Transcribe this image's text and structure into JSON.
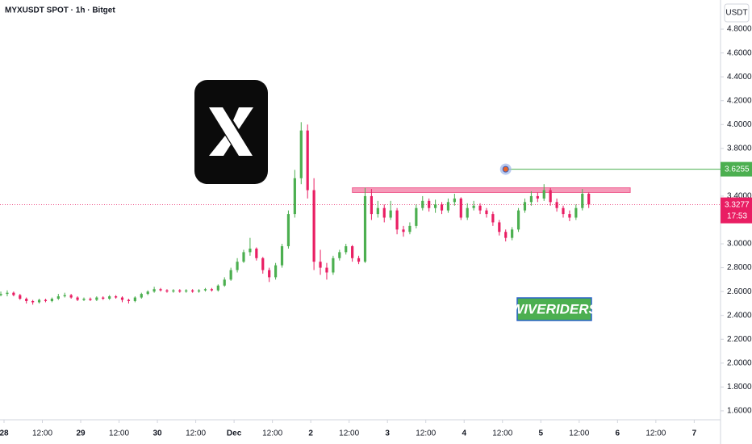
{
  "chart_data": {
    "type": "candlestick",
    "title": "MYXUSDT SPOT · 1h · Bitget",
    "currency": "USDT",
    "up_color": "#4caf50",
    "down_color": "#e91e63",
    "x": [
      -1,
      1,
      3,
      5,
      7,
      9,
      11,
      13,
      15,
      17,
      19,
      21,
      23,
      25,
      27,
      29,
      31,
      33,
      35,
      37,
      39,
      41,
      43,
      45,
      47,
      49,
      51,
      53,
      55,
      57,
      59,
      61,
      63,
      65,
      67,
      69,
      71,
      73,
      75,
      77,
      79,
      81,
      83,
      85,
      87,
      89,
      91,
      93,
      95,
      97,
      99,
      101,
      103,
      105,
      107,
      109,
      111,
      113,
      115,
      117,
      119,
      121,
      123,
      125,
      127,
      129,
      131,
      133,
      135,
      137,
      139,
      141,
      143,
      145,
      147,
      149,
      151,
      153,
      155,
      157,
      159,
      161,
      163,
      165,
      167,
      169,
      171,
      173,
      175,
      177,
      179,
      181,
      183
    ],
    "ohlc": [
      [
        2.57,
        2.6,
        2.56,
        2.58
      ],
      [
        2.58,
        2.61,
        2.56,
        2.59
      ],
      [
        2.59,
        2.6,
        2.56,
        2.57
      ],
      [
        2.57,
        2.58,
        2.53,
        2.54
      ],
      [
        2.54,
        2.55,
        2.5,
        2.52
      ],
      [
        2.52,
        2.53,
        2.49,
        2.51
      ],
      [
        2.51,
        2.54,
        2.5,
        2.53
      ],
      [
        2.53,
        2.54,
        2.51,
        2.52
      ],
      [
        2.52,
        2.55,
        2.51,
        2.54
      ],
      [
        2.54,
        2.58,
        2.53,
        2.56
      ],
      [
        2.56,
        2.59,
        2.55,
        2.57
      ],
      [
        2.57,
        2.58,
        2.54,
        2.55
      ],
      [
        2.55,
        2.56,
        2.52,
        2.53
      ],
      [
        2.53,
        2.55,
        2.52,
        2.54
      ],
      [
        2.54,
        2.55,
        2.52,
        2.53
      ],
      [
        2.53,
        2.56,
        2.52,
        2.55
      ],
      [
        2.55,
        2.56,
        2.53,
        2.54
      ],
      [
        2.54,
        2.57,
        2.53,
        2.56
      ],
      [
        2.56,
        2.57,
        2.54,
        2.55
      ],
      [
        2.55,
        2.56,
        2.51,
        2.53
      ],
      [
        2.53,
        2.54,
        2.5,
        2.52
      ],
      [
        2.52,
        2.56,
        2.51,
        2.55
      ],
      [
        2.55,
        2.59,
        2.54,
        2.58
      ],
      [
        2.58,
        2.61,
        2.57,
        2.6
      ],
      [
        2.6,
        2.64,
        2.59,
        2.62
      ],
      [
        2.62,
        2.63,
        2.6,
        2.61
      ],
      [
        2.61,
        2.62,
        2.59,
        2.6
      ],
      [
        2.6,
        2.62,
        2.59,
        2.61
      ],
      [
        2.61,
        2.62,
        2.59,
        2.6
      ],
      [
        2.6,
        2.62,
        2.59,
        2.61
      ],
      [
        2.61,
        2.62,
        2.59,
        2.6
      ],
      [
        2.6,
        2.62,
        2.59,
        2.61
      ],
      [
        2.61,
        2.63,
        2.6,
        2.62
      ],
      [
        2.62,
        2.63,
        2.6,
        2.61
      ],
      [
        2.61,
        2.66,
        2.6,
        2.65
      ],
      [
        2.65,
        2.72,
        2.64,
        2.7
      ],
      [
        2.7,
        2.8,
        2.69,
        2.78
      ],
      [
        2.78,
        2.88,
        2.76,
        2.85
      ],
      [
        2.85,
        2.95,
        2.84,
        2.93
      ],
      [
        2.93,
        3.05,
        2.9,
        2.96
      ],
      [
        2.96,
        2.97,
        2.86,
        2.88
      ],
      [
        2.88,
        2.89,
        2.75,
        2.78
      ],
      [
        2.78,
        2.8,
        2.68,
        2.72
      ],
      [
        2.72,
        2.84,
        2.7,
        2.82
      ],
      [
        2.82,
        3.0,
        2.8,
        2.98
      ],
      [
        2.98,
        3.28,
        2.96,
        3.25
      ],
      [
        3.25,
        3.62,
        3.22,
        3.55
      ],
      [
        3.55,
        4.02,
        3.5,
        3.95
      ],
      [
        3.95,
        4.0,
        3.38,
        3.45
      ],
      [
        3.45,
        3.55,
        2.78,
        2.85
      ],
      [
        2.85,
        2.95,
        2.74,
        2.8
      ],
      [
        2.8,
        2.84,
        2.7,
        2.76
      ],
      [
        2.76,
        2.9,
        2.74,
        2.88
      ],
      [
        2.88,
        2.95,
        2.86,
        2.93
      ],
      [
        2.93,
        3.0,
        2.91,
        2.98
      ],
      [
        2.98,
        2.99,
        2.85,
        2.88
      ],
      [
        2.88,
        2.9,
        2.83,
        2.85
      ],
      [
        2.85,
        3.47,
        2.84,
        3.4
      ],
      [
        3.4,
        3.46,
        3.2,
        3.25
      ],
      [
        3.25,
        3.36,
        3.22,
        3.3
      ],
      [
        3.3,
        3.33,
        3.18,
        3.22
      ],
      [
        3.22,
        3.36,
        3.2,
        3.28
      ],
      [
        3.28,
        3.3,
        3.08,
        3.12
      ],
      [
        3.12,
        3.15,
        3.06,
        3.1
      ],
      [
        3.1,
        3.18,
        3.08,
        3.15
      ],
      [
        3.15,
        3.33,
        3.13,
        3.3
      ],
      [
        3.3,
        3.4,
        3.28,
        3.36
      ],
      [
        3.36,
        3.38,
        3.27,
        3.3
      ],
      [
        3.3,
        3.37,
        3.26,
        3.33
      ],
      [
        3.33,
        3.35,
        3.25,
        3.28
      ],
      [
        3.28,
        3.38,
        3.26,
        3.35
      ],
      [
        3.35,
        3.42,
        3.32,
        3.38
      ],
      [
        3.38,
        3.39,
        3.2,
        3.22
      ],
      [
        3.22,
        3.34,
        3.2,
        3.3
      ],
      [
        3.3,
        3.36,
        3.28,
        3.32
      ],
      [
        3.32,
        3.34,
        3.25,
        3.28
      ],
      [
        3.28,
        3.3,
        3.22,
        3.25
      ],
      [
        3.25,
        3.27,
        3.15,
        3.18
      ],
      [
        3.18,
        3.2,
        3.07,
        3.1
      ],
      [
        3.1,
        3.12,
        3.02,
        3.05
      ],
      [
        3.05,
        3.14,
        3.03,
        3.12
      ],
      [
        3.12,
        3.3,
        3.1,
        3.28
      ],
      [
        3.28,
        3.38,
        3.26,
        3.35
      ],
      [
        3.35,
        3.44,
        3.32,
        3.4
      ],
      [
        3.4,
        3.43,
        3.35,
        3.38
      ],
      [
        3.38,
        3.5,
        3.36,
        3.45
      ],
      [
        3.45,
        3.47,
        3.32,
        3.35
      ],
      [
        3.35,
        3.38,
        3.27,
        3.3
      ],
      [
        3.3,
        3.32,
        3.22,
        3.25
      ],
      [
        3.25,
        3.28,
        3.19,
        3.22
      ],
      [
        3.22,
        3.33,
        3.2,
        3.3
      ],
      [
        3.3,
        3.46,
        3.28,
        3.42
      ],
      [
        3.42,
        3.43,
        3.3,
        3.33
      ]
    ],
    "xlim": [
      -1.26,
      224.24
    ],
    "xticks": [
      {
        "value": 0,
        "label": "28"
      },
      {
        "value": 12,
        "label": "12:00"
      },
      {
        "value": 24,
        "label": "29"
      },
      {
        "value": 36,
        "label": "12:00"
      },
      {
        "value": 48,
        "label": "30"
      },
      {
        "value": 60,
        "label": "12:00"
      },
      {
        "value": 72,
        "label": "Dec"
      },
      {
        "value": 84,
        "label": "12:00"
      },
      {
        "value": 96,
        "label": "2"
      },
      {
        "value": 108,
        "label": "12:00"
      },
      {
        "value": 120,
        "label": "3"
      },
      {
        "value": 132,
        "label": "12:00"
      },
      {
        "value": 144,
        "label": "4"
      },
      {
        "value": 156,
        "label": "12:00"
      },
      {
        "value": 168,
        "label": "5"
      },
      {
        "value": 180,
        "label": "12:00"
      },
      {
        "value": 192,
        "label": "6"
      },
      {
        "value": 204,
        "label": "12:00"
      },
      {
        "value": 216,
        "label": "7"
      }
    ],
    "ylim": [
      1.525,
      5.044
    ],
    "yticks": [
      {
        "value": 1.6,
        "label": "1.6000"
      },
      {
        "value": 1.8,
        "label": "1.8000"
      },
      {
        "value": 2.0,
        "label": "2.0000"
      },
      {
        "value": 2.2,
        "label": "2.2000"
      },
      {
        "value": 2.4,
        "label": "2.4000"
      },
      {
        "value": 2.6,
        "label": "2.6000"
      },
      {
        "value": 2.8,
        "label": "2.8000"
      },
      {
        "value": 3.0,
        "label": "3.0000"
      },
      {
        "value": 3.2,
        "label": "3.2000"
      },
      {
        "value": 3.4,
        "label": "3.4000"
      },
      {
        "value": 3.6,
        "label": "3.6000"
      },
      {
        "value": 3.8,
        "label": "3.8000"
      },
      {
        "value": 4.0,
        "label": "4.0000"
      },
      {
        "value": 4.2,
        "label": "4.2000"
      },
      {
        "value": 4.4,
        "label": "4.4000"
      },
      {
        "value": 4.6,
        "label": "4.6000"
      },
      {
        "value": 4.8,
        "label": "4.8000"
      }
    ],
    "last_price": {
      "value": 3.3277,
      "countdown": "17:53",
      "color": "#e91e63"
    },
    "level": {
      "value": 3.6255,
      "x": 157,
      "color": "#4caf50"
    },
    "zone": {
      "low": 3.43,
      "high": 3.47,
      "x": [
        109,
        196
      ],
      "color": "#e91e63"
    },
    "badge": "WIVERIDERS"
  }
}
